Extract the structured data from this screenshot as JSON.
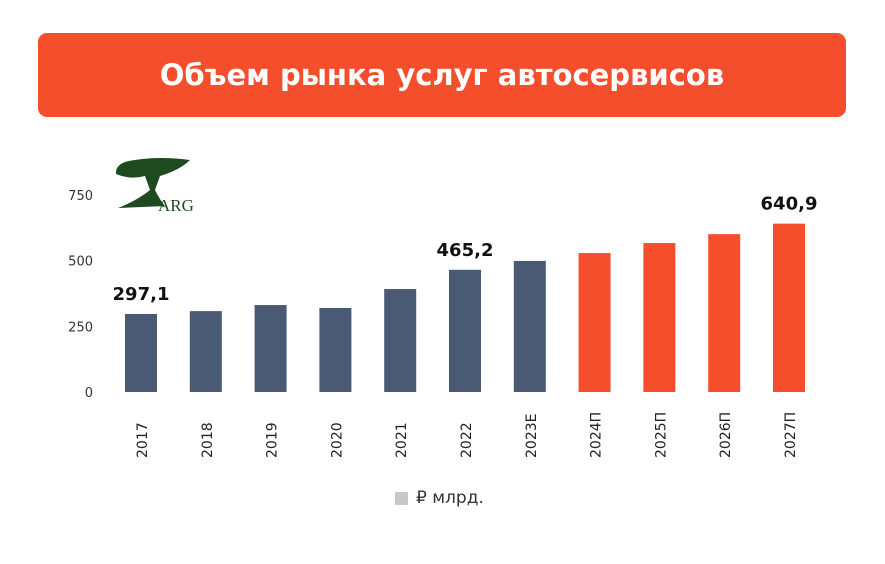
{
  "title": "Объем рынка услуг автосервисов",
  "logo_text": "ARG",
  "colors": {
    "actual": "#4a5a74",
    "forecast": "#f44e2c",
    "legend": "#c8c8c8"
  },
  "chart_data": {
    "type": "bar",
    "title": "Объем рынка услуг автосервисов",
    "categories": [
      "2017",
      "2018",
      "2019",
      "2020",
      "2021",
      "2022",
      "2023E",
      "2024П",
      "2025П",
      "2026П",
      "2027П"
    ],
    "values": [
      297.1,
      308,
      331,
      320,
      392,
      465.2,
      499,
      529,
      567,
      601,
      640.9
    ],
    "forecast": [
      false,
      false,
      false,
      false,
      false,
      false,
      false,
      true,
      true,
      true,
      true
    ],
    "data_labels": {
      "0": "297,1",
      "5": "465,2",
      "10": "640,9"
    },
    "yticks": [
      "0",
      "250",
      "500",
      "750"
    ],
    "ylim": [
      0,
      750
    ],
    "legend": "₽ млрд.",
    "legend_position": "bottom",
    "grid": false
  }
}
